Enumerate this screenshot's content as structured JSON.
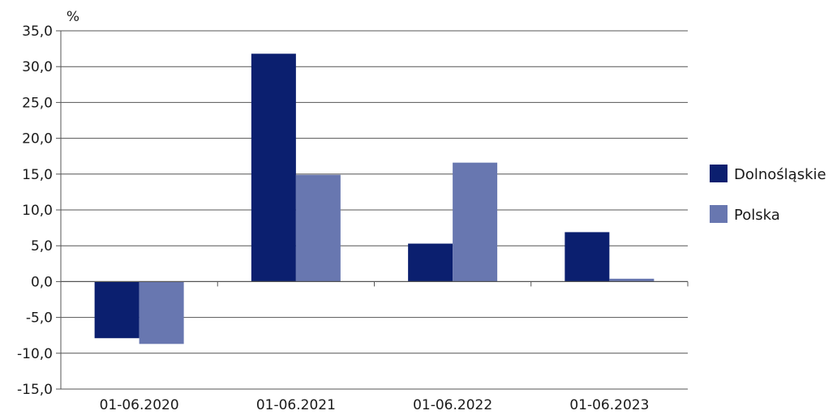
{
  "chart_data": {
    "type": "bar",
    "unit_label": "%",
    "categories": [
      "01-06.2020",
      "01-06.2021",
      "01-06.2022",
      "01-06.2023"
    ],
    "series": [
      {
        "name": "Dolnośląskie",
        "color": "#0b1f6f",
        "values": [
          -7.9,
          31.8,
          5.3,
          6.9
        ]
      },
      {
        "name": "Polska",
        "color": "#6877b0",
        "values": [
          -8.7,
          14.9,
          16.6,
          0.4
        ]
      }
    ],
    "ylim": [
      -15,
      35
    ],
    "ytick_step": 5,
    "ytick_labels": [
      "-15,0",
      "-10,0",
      "-5,0",
      "0,0",
      "5,0",
      "10,0",
      "15,0",
      "20,0",
      "25,0",
      "30,0",
      "35,0"
    ],
    "grid": true,
    "legend_position": "right"
  }
}
